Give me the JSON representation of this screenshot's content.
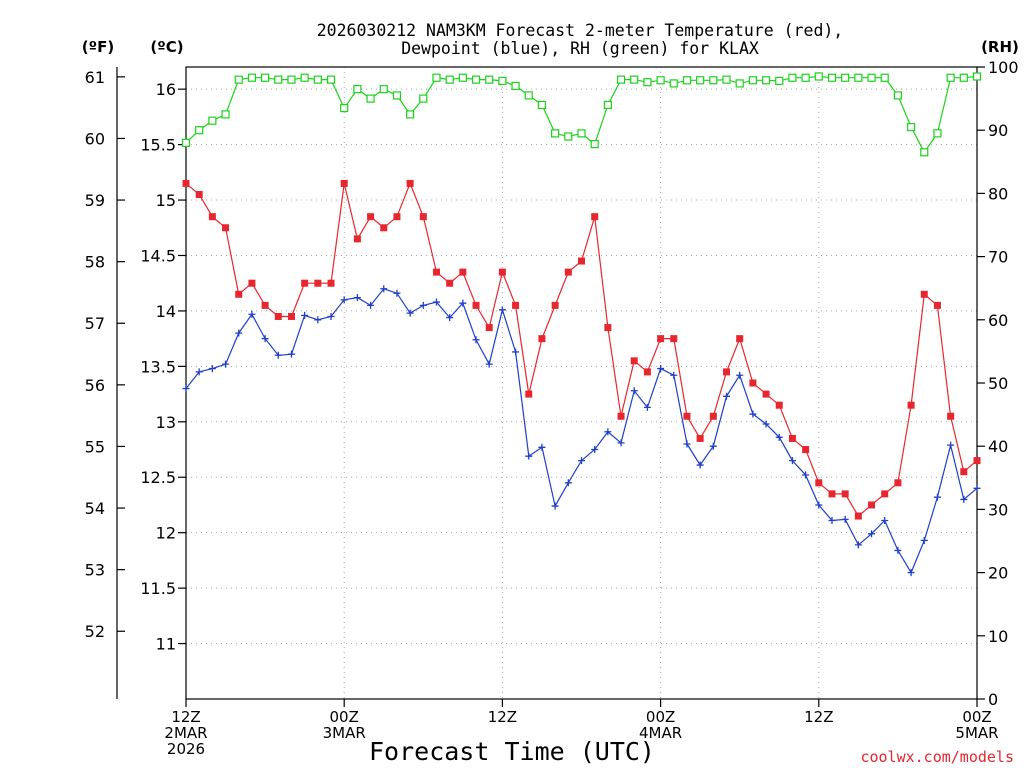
{
  "chart_data": {
    "type": "line",
    "title": "2026030212 NAM3KM Forecast 2-meter Temperature (red),",
    "subtitle": "Dewpoint (blue), RH (green) for KLAX",
    "xlabel": "Forecast Time (UTC)",
    "watermark": "coolwx.com/models",
    "unit_labels": {
      "fahrenheit": "(ºF)",
      "celsius": "(ºC)",
      "rh": "(RH)"
    },
    "x_ticks": [
      {
        "hour": 0,
        "lines": [
          "12Z",
          "2MAR",
          "2026"
        ]
      },
      {
        "hour": 12,
        "lines": [
          "00Z",
          "3MAR"
        ]
      },
      {
        "hour": 24,
        "lines": [
          "12Z"
        ]
      },
      {
        "hour": 36,
        "lines": [
          "00Z",
          "4MAR"
        ]
      },
      {
        "hour": 48,
        "lines": [
          "12Z"
        ]
      },
      {
        "hour": 60,
        "lines": [
          "00Z",
          "5MAR"
        ]
      }
    ],
    "x_range_hours": [
      0,
      60
    ],
    "celsius_ticks": [
      "11",
      "11.5",
      "12",
      "12.5",
      "13",
      "13.5",
      "14",
      "14.5",
      "15",
      "15.5",
      "16"
    ],
    "celsius_range": [
      10.5,
      16.2
    ],
    "fahrenheit_ticks": [
      "52",
      "53",
      "54",
      "55",
      "56",
      "57",
      "58",
      "59",
      "60",
      "61"
    ],
    "rh_ticks": [
      "0",
      "10",
      "20",
      "30",
      "40",
      "50",
      "60",
      "70",
      "80",
      "90",
      "100"
    ],
    "rh_range": [
      0,
      100
    ],
    "grid": true,
    "series": [
      {
        "name": "Temperature",
        "color": "#e8262d",
        "marker": "filled-square",
        "axis": "celsius",
        "values": [
          15.15,
          15.05,
          14.85,
          14.75,
          14.15,
          14.25,
          14.05,
          13.95,
          13.95,
          14.25,
          14.25,
          14.25,
          15.15,
          14.65,
          14.85,
          14.75,
          14.85,
          15.15,
          14.85,
          14.35,
          14.25,
          14.35,
          14.05,
          13.85,
          14.35,
          14.05,
          13.25,
          13.75,
          14.05,
          14.35,
          14.45,
          14.85,
          13.85,
          13.05,
          13.55,
          13.45,
          13.75,
          13.75,
          13.05,
          12.85,
          13.05,
          13.45,
          13.75,
          13.35,
          13.25,
          13.15,
          12.85,
          12.75,
          12.45,
          12.35,
          12.35,
          12.15,
          12.25,
          12.35,
          12.45,
          13.15,
          14.15,
          14.05,
          13.05,
          12.55,
          12.65
        ]
      },
      {
        "name": "Dewpoint",
        "color": "#1f3fcc",
        "marker": "plus",
        "axis": "celsius",
        "values": [
          13.3,
          13.45,
          13.48,
          13.52,
          13.8,
          13.97,
          13.75,
          13.6,
          13.61,
          13.96,
          13.92,
          13.95,
          14.1,
          14.12,
          14.05,
          14.2,
          14.16,
          13.98,
          14.05,
          14.08,
          13.94,
          14.07,
          13.74,
          13.52,
          14.01,
          13.63,
          12.69,
          12.77,
          12.24,
          12.45,
          12.65,
          12.75,
          12.91,
          12.81,
          13.28,
          13.13,
          13.48,
          13.42,
          12.8,
          12.61,
          12.78,
          13.23,
          13.42,
          13.07,
          12.98,
          12.86,
          12.65,
          12.52,
          12.25,
          12.11,
          12.12,
          11.89,
          11.99,
          12.11,
          11.84,
          11.64,
          11.93,
          12.32,
          12.79,
          12.3,
          12.4
        ]
      },
      {
        "name": "RH",
        "color": "#1ad41a",
        "marker": "open-square",
        "axis": "rh",
        "values": [
          88,
          90,
          91.5,
          92.5,
          98,
          98.3,
          98.3,
          98,
          98,
          98.3,
          98,
          98,
          93.5,
          96.5,
          95,
          96.5,
          95.5,
          92.5,
          95,
          98.3,
          98,
          98.3,
          98,
          98,
          97.8,
          97,
          95.5,
          94,
          89.5,
          89,
          89.5,
          87.8,
          94,
          98,
          98,
          97.6,
          97.9,
          97.4,
          97.9,
          97.9,
          97.9,
          98,
          97.4,
          97.9,
          97.9,
          97.8,
          98.3,
          98.3,
          98.5,
          98.3,
          98.3,
          98.3,
          98.3,
          98.3,
          95.5,
          90.5,
          86.5,
          89.5,
          98.3,
          98.3,
          98.5
        ]
      }
    ]
  }
}
